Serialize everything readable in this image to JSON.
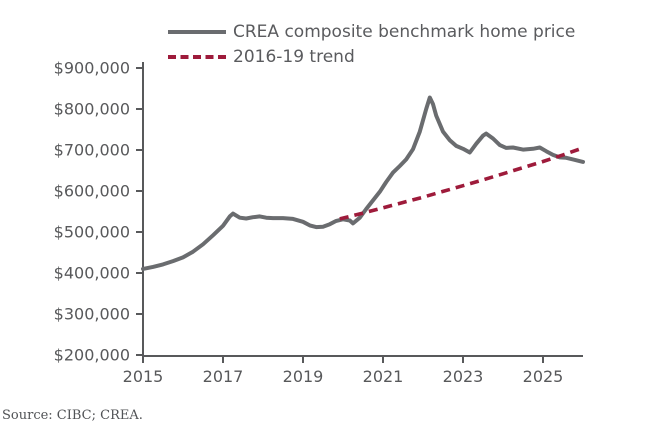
{
  "page": {
    "background": "#ffffff"
  },
  "colors": {
    "axis": "#58595b",
    "tick_text": "#58595b",
    "benchmark_line": "#6a6c6f",
    "trend_line": "#9e1b3b",
    "source_text": "#515356"
  },
  "legend": {
    "items": [
      {
        "label": "CREA composite benchmark home price",
        "color": "#6a6c6f",
        "style": "solid"
      },
      {
        "label": "2016-19 trend",
        "color": "#9e1b3b",
        "style": "dashed"
      }
    ]
  },
  "source_note": "Source: CIBC; CREA.",
  "chart_data": {
    "type": "line",
    "title": "",
    "xlabel": "",
    "ylabel": "",
    "grid": false,
    "legend_position": "top",
    "x_axis": {
      "min": 2015,
      "max": 2026,
      "tick_values": [
        2015,
        2017,
        2019,
        2021,
        2023,
        2025
      ],
      "tick_labels": [
        "2015",
        "2017",
        "2019",
        "2021",
        "2023",
        "2025"
      ]
    },
    "y_axis": {
      "min": 200000,
      "max": 900000,
      "tick_values": [
        200000,
        300000,
        400000,
        500000,
        600000,
        700000,
        800000,
        900000
      ],
      "tick_labels": [
        "$200,000",
        "$300,000",
        "$400,000",
        "$500,000",
        "$600,000",
        "$700,000",
        "$800,000",
        "$900,000"
      ]
    },
    "series": [
      {
        "name": "CREA composite benchmark home price",
        "color": "#6a6c6f",
        "style": "solid",
        "points": [
          [
            2015.0,
            410000
          ],
          [
            2015.25,
            415000
          ],
          [
            2015.5,
            421000
          ],
          [
            2015.75,
            429000
          ],
          [
            2016.0,
            438000
          ],
          [
            2016.25,
            452000
          ],
          [
            2016.5,
            470000
          ],
          [
            2016.75,
            492000
          ],
          [
            2017.0,
            515000
          ],
          [
            2017.17,
            538000
          ],
          [
            2017.25,
            545000
          ],
          [
            2017.42,
            535000
          ],
          [
            2017.58,
            533000
          ],
          [
            2017.75,
            536000
          ],
          [
            2017.92,
            538000
          ],
          [
            2018.08,
            535000
          ],
          [
            2018.25,
            534000
          ],
          [
            2018.5,
            534000
          ],
          [
            2018.75,
            532000
          ],
          [
            2019.0,
            525000
          ],
          [
            2019.17,
            516000
          ],
          [
            2019.33,
            512000
          ],
          [
            2019.5,
            513000
          ],
          [
            2019.67,
            519000
          ],
          [
            2019.83,
            527000
          ],
          [
            2020.0,
            531000
          ],
          [
            2020.17,
            528000
          ],
          [
            2020.25,
            521000
          ],
          [
            2020.42,
            535000
          ],
          [
            2020.58,
            556000
          ],
          [
            2020.75,
            577000
          ],
          [
            2020.92,
            598000
          ],
          [
            2021.08,
            622000
          ],
          [
            2021.25,
            645000
          ],
          [
            2021.42,
            661000
          ],
          [
            2021.58,
            677000
          ],
          [
            2021.75,
            702000
          ],
          [
            2021.92,
            745000
          ],
          [
            2022.08,
            800000
          ],
          [
            2022.17,
            828000
          ],
          [
            2022.25,
            812000
          ],
          [
            2022.33,
            784000
          ],
          [
            2022.5,
            745000
          ],
          [
            2022.67,
            724000
          ],
          [
            2022.83,
            710000
          ],
          [
            2023.0,
            703000
          ],
          [
            2023.17,
            694000
          ],
          [
            2023.33,
            715000
          ],
          [
            2023.5,
            735000
          ],
          [
            2023.58,
            740000
          ],
          [
            2023.75,
            728000
          ],
          [
            2023.92,
            712000
          ],
          [
            2024.08,
            705000
          ],
          [
            2024.25,
            706000
          ],
          [
            2024.5,
            701000
          ],
          [
            2024.75,
            703000
          ],
          [
            2024.92,
            706000
          ],
          [
            2025.08,
            697000
          ],
          [
            2025.25,
            688000
          ],
          [
            2025.42,
            682000
          ],
          [
            2025.58,
            681000
          ],
          [
            2025.75,
            677000
          ],
          [
            2026.0,
            671000
          ]
        ]
      },
      {
        "name": "2016-19 trend",
        "color": "#9e1b3b",
        "style": "dashed",
        "points": [
          [
            2019.92,
            532000
          ],
          [
            2020.5,
            546000
          ],
          [
            2021.0,
            559000
          ],
          [
            2021.5,
            572000
          ],
          [
            2022.0,
            585000
          ],
          [
            2022.5,
            599000
          ],
          [
            2023.0,
            613000
          ],
          [
            2023.5,
            627000
          ],
          [
            2024.0,
            642000
          ],
          [
            2024.5,
            657000
          ],
          [
            2025.0,
            672000
          ],
          [
            2025.5,
            688000
          ],
          [
            2026.0,
            705000
          ]
        ]
      }
    ]
  }
}
